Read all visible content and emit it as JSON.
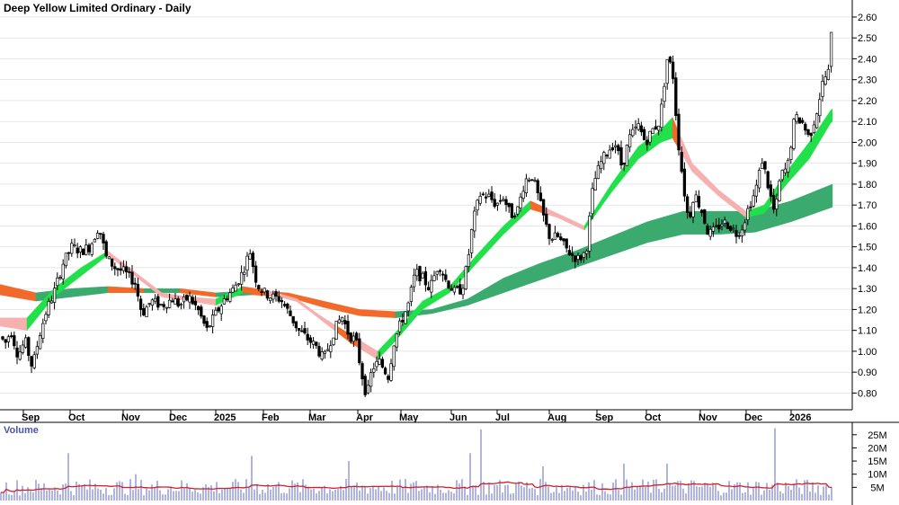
{
  "chart_data": {
    "type": "candlestick",
    "title": "Deep Yellow Limited Ordinary - Daily",
    "price_axis": {
      "ylim": [
        0.72,
        2.66
      ],
      "ticks": [
        "0.80",
        "0.90",
        "1.00",
        "1.10",
        "1.20",
        "1.30",
        "1.40",
        "1.50",
        "1.60",
        "1.70",
        "1.80",
        "1.90",
        "2.00",
        "2.10",
        "2.20",
        "2.30",
        "2.40",
        "2.50",
        "2.60"
      ],
      "position": "right"
    },
    "months": [
      "Sep",
      "Oct",
      "Nov",
      "Dec",
      "2025",
      "Feb",
      "Mar",
      "Apr",
      "May",
      "Jun",
      "Jul",
      "Aug",
      "Sep",
      "Oct",
      "Nov",
      "Dec",
      "2026"
    ],
    "price_path": [
      [
        0,
        1.07
      ],
      [
        6,
        1.04
      ],
      [
        12,
        1.1
      ],
      [
        20,
        0.98
      ],
      [
        28,
        1.05
      ],
      [
        36,
        0.92
      ],
      [
        44,
        1.08
      ],
      [
        52,
        1.2
      ],
      [
        60,
        1.28
      ],
      [
        70,
        1.42
      ],
      [
        80,
        1.5
      ],
      [
        90,
        1.48
      ],
      [
        100,
        1.5
      ],
      [
        110,
        1.6
      ],
      [
        118,
        1.45
      ],
      [
        128,
        1.4
      ],
      [
        138,
        1.38
      ],
      [
        150,
        1.33
      ],
      [
        158,
        1.18
      ],
      [
        168,
        1.24
      ],
      [
        180,
        1.22
      ],
      [
        192,
        1.25
      ],
      [
        200,
        1.22
      ],
      [
        210,
        1.26
      ],
      [
        220,
        1.2
      ],
      [
        230,
        1.1
      ],
      [
        240,
        1.18
      ],
      [
        250,
        1.25
      ],
      [
        260,
        1.3
      ],
      [
        270,
        1.38
      ],
      [
        278,
        1.48
      ],
      [
        286,
        1.32
      ],
      [
        294,
        1.28
      ],
      [
        302,
        1.26
      ],
      [
        312,
        1.25
      ],
      [
        322,
        1.18
      ],
      [
        332,
        1.1
      ],
      [
        342,
        1.06
      ],
      [
        352,
        1.02
      ],
      [
        360,
        0.96
      ],
      [
        372,
        1.1
      ],
      [
        380,
        1.17
      ],
      [
        388,
        1.08
      ],
      [
        396,
        1.05
      ],
      [
        402,
        0.9
      ],
      [
        408,
        0.78
      ],
      [
        414,
        0.92
      ],
      [
        422,
        0.95
      ],
      [
        432,
        0.88
      ],
      [
        438,
        1.04
      ],
      [
        446,
        1.14
      ],
      [
        454,
        1.22
      ],
      [
        462,
        1.38
      ],
      [
        470,
        1.35
      ],
      [
        478,
        1.3
      ],
      [
        488,
        1.42
      ],
      [
        496,
        1.34
      ],
      [
        506,
        1.28
      ],
      [
        514,
        1.3
      ],
      [
        520,
        1.42
      ],
      [
        526,
        1.62
      ],
      [
        534,
        1.75
      ],
      [
        544,
        1.74
      ],
      [
        552,
        1.7
      ],
      [
        560,
        1.74
      ],
      [
        568,
        1.65
      ],
      [
        576,
        1.68
      ],
      [
        584,
        1.82
      ],
      [
        592,
        1.84
      ],
      [
        600,
        1.72
      ],
      [
        606,
        1.62
      ],
      [
        612,
        1.54
      ],
      [
        620,
        1.55
      ],
      [
        628,
        1.5
      ],
      [
        636,
        1.46
      ],
      [
        644,
        1.44
      ],
      [
        652,
        1.48
      ],
      [
        660,
        1.8
      ],
      [
        668,
        1.9
      ],
      [
        676,
        1.96
      ],
      [
        684,
        2.0
      ],
      [
        692,
        1.88
      ],
      [
        700,
        2.02
      ],
      [
        710,
        2.08
      ],
      [
        718,
        2.0
      ],
      [
        726,
        2.06
      ],
      [
        734,
        2.1
      ],
      [
        742,
        2.4
      ],
      [
        748,
        2.35
      ],
      [
        754,
        2.02
      ],
      [
        760,
        1.8
      ],
      [
        766,
        1.62
      ],
      [
        772,
        1.76
      ],
      [
        780,
        1.68
      ],
      [
        788,
        1.56
      ],
      [
        796,
        1.58
      ],
      [
        804,
        1.62
      ],
      [
        812,
        1.6
      ],
      [
        820,
        1.56
      ],
      [
        826,
        1.6
      ],
      [
        832,
        1.68
      ],
      [
        840,
        1.76
      ],
      [
        848,
        1.92
      ],
      [
        856,
        1.76
      ],
      [
        862,
        1.65
      ],
      [
        868,
        1.84
      ],
      [
        876,
        1.88
      ],
      [
        884,
        2.12
      ],
      [
        892,
        2.1
      ],
      [
        900,
        2.02
      ],
      [
        908,
        2.14
      ],
      [
        916,
        2.3
      ],
      [
        922,
        2.34
      ],
      [
        926,
        2.6
      ]
    ],
    "ma_short_band": [
      [
        0,
        1.12,
        1.16
      ],
      [
        30,
        1.1,
        1.16
      ],
      [
        60,
        1.26,
        1.3
      ],
      [
        90,
        1.36,
        1.4
      ],
      [
        120,
        1.46,
        1.48
      ],
      [
        150,
        1.36,
        1.38
      ],
      [
        180,
        1.26,
        1.28
      ],
      [
        210,
        1.24,
        1.26
      ],
      [
        240,
        1.22,
        1.25
      ],
      [
        270,
        1.28,
        1.31
      ],
      [
        300,
        1.27,
        1.29
      ],
      [
        330,
        1.24,
        1.25
      ],
      [
        360,
        1.14,
        1.16
      ],
      [
        390,
        1.04,
        1.08
      ],
      [
        420,
        0.96,
        1.0
      ],
      [
        440,
        1.05,
        1.09
      ],
      [
        470,
        1.2,
        1.24
      ],
      [
        500,
        1.28,
        1.31
      ],
      [
        530,
        1.42,
        1.46
      ],
      [
        560,
        1.56,
        1.6
      ],
      [
        590,
        1.68,
        1.72
      ],
      [
        620,
        1.64,
        1.66
      ],
      [
        650,
        1.58,
        1.6
      ],
      [
        680,
        1.76,
        1.8
      ],
      [
        710,
        1.92,
        1.98
      ],
      [
        735,
        2.0,
        2.06
      ],
      [
        748,
        2.02,
        2.12
      ],
      [
        770,
        1.86,
        1.9
      ],
      [
        800,
        1.74,
        1.77
      ],
      [
        830,
        1.64,
        1.67
      ],
      [
        850,
        1.66,
        1.7
      ],
      [
        875,
        1.8,
        1.86
      ],
      [
        900,
        1.92,
        2.0
      ],
      [
        925,
        2.1,
        2.16
      ]
    ],
    "ma_long_band": [
      [
        0,
        1.27,
        1.32
      ],
      [
        40,
        1.24,
        1.28
      ],
      [
        80,
        1.26,
        1.3
      ],
      [
        120,
        1.28,
        1.31
      ],
      [
        160,
        1.28,
        1.3
      ],
      [
        200,
        1.28,
        1.3
      ],
      [
        240,
        1.26,
        1.28
      ],
      [
        280,
        1.27,
        1.29
      ],
      [
        320,
        1.26,
        1.28
      ],
      [
        360,
        1.21,
        1.24
      ],
      [
        400,
        1.17,
        1.2
      ],
      [
        440,
        1.16,
        1.19
      ],
      [
        480,
        1.18,
        1.2
      ],
      [
        520,
        1.22,
        1.25
      ],
      [
        560,
        1.28,
        1.35
      ],
      [
        600,
        1.34,
        1.42
      ],
      [
        640,
        1.4,
        1.48
      ],
      [
        680,
        1.46,
        1.55
      ],
      [
        720,
        1.52,
        1.62
      ],
      [
        760,
        1.56,
        1.67
      ],
      [
        800,
        1.56,
        1.67
      ],
      [
        840,
        1.57,
        1.67
      ],
      [
        880,
        1.62,
        1.72
      ],
      [
        926,
        1.69,
        1.8
      ]
    ],
    "volume_axis": {
      "ylim": [
        0,
        28
      ],
      "ticks": [
        "5M",
        "10M",
        "15M",
        "20M",
        "25M"
      ],
      "position": "right",
      "unit": "M"
    },
    "volume_label": "Volume",
    "volume_baseline": 5.5,
    "volume_spikes": [
      [
        76,
        18
      ],
      [
        150,
        10
      ],
      [
        278,
        17
      ],
      [
        386,
        15
      ],
      [
        523,
        18
      ],
      [
        535,
        27
      ],
      [
        604,
        13
      ],
      [
        694,
        14
      ],
      [
        742,
        14
      ],
      [
        861,
        27.5
      ]
    ],
    "colors": {
      "candle": "#000000",
      "ma_short_up": "#22e04a",
      "ma_short_down": "#f26a2b",
      "ma_short_down_light": "#f7b0b0",
      "ma_long_up": "#3aaa6e",
      "ma_long_down": "#f26a2b",
      "volume_bar": "#8f93d4",
      "volume_ma": "#d0202a",
      "grid": "#d9d9d9"
    }
  }
}
